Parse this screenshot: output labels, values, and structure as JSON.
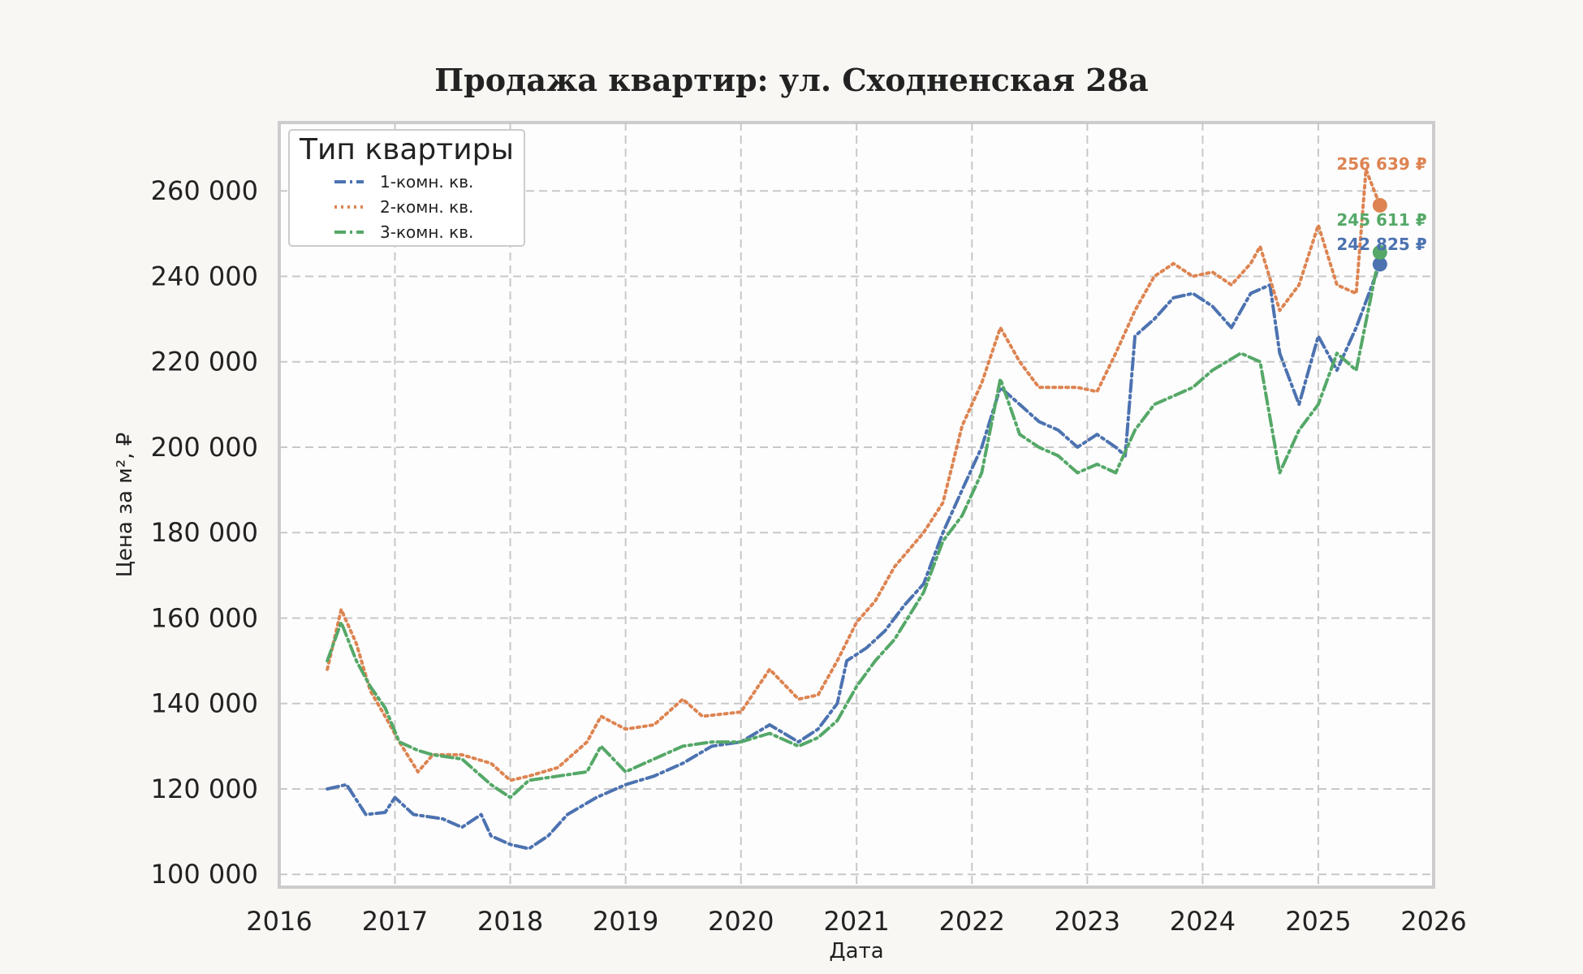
{
  "chart_data": {
    "type": "line",
    "title": "Продажа квартир: ул. Сходненская 28а",
    "xlabel": "Дата",
    "ylabel": "Цена за м², ₽",
    "xlim": [
      "2016-01-01",
      "2026-01-01"
    ],
    "ylim": [
      97000,
      276000
    ],
    "x_ticks": [
      "2016",
      "2017",
      "2018",
      "2019",
      "2020",
      "2021",
      "2022",
      "2023",
      "2024",
      "2025",
      "2026"
    ],
    "y_ticks": [
      "100 000",
      "120 000",
      "140 000",
      "160 000",
      "180 000",
      "200 000",
      "220 000",
      "240 000",
      "260 000"
    ],
    "y_tick_values": [
      100000,
      120000,
      140000,
      160000,
      180000,
      200000,
      220000,
      240000,
      260000
    ],
    "grid": true,
    "legend": {
      "title": "Тип квартиры",
      "position": "top-left"
    },
    "series": [
      {
        "name": "1-комн. кв.",
        "color": "#4c72b0",
        "style": "dashdot",
        "last_value": 242825,
        "last_label": "242 825 ₽",
        "points": [
          [
            "2016-06-01",
            120000
          ],
          [
            "2016-08-01",
            121000
          ],
          [
            "2016-10-01",
            114000
          ],
          [
            "2016-12-01",
            114500
          ],
          [
            "2017-01-01",
            118000
          ],
          [
            "2017-03-01",
            114000
          ],
          [
            "2017-06-01",
            113000
          ],
          [
            "2017-08-01",
            111000
          ],
          [
            "2017-10-01",
            114000
          ],
          [
            "2017-11-01",
            109000
          ],
          [
            "2018-01-01",
            107000
          ],
          [
            "2018-03-01",
            106000
          ],
          [
            "2018-05-01",
            109000
          ],
          [
            "2018-07-01",
            114000
          ],
          [
            "2018-10-01",
            118000
          ],
          [
            "2019-01-01",
            121000
          ],
          [
            "2019-04-01",
            123000
          ],
          [
            "2019-07-01",
            126000
          ],
          [
            "2019-10-01",
            130000
          ],
          [
            "2020-01-01",
            131000
          ],
          [
            "2020-04-01",
            135000
          ],
          [
            "2020-07-01",
            131000
          ],
          [
            "2020-09-01",
            134000
          ],
          [
            "2020-11-01",
            140000
          ],
          [
            "2020-12-01",
            150000
          ],
          [
            "2021-02-01",
            153000
          ],
          [
            "2021-04-01",
            157000
          ],
          [
            "2021-06-01",
            163000
          ],
          [
            "2021-08-01",
            168000
          ],
          [
            "2021-10-01",
            180000
          ],
          [
            "2021-12-01",
            190000
          ],
          [
            "2022-02-01",
            200000
          ],
          [
            "2022-04-01",
            214000
          ],
          [
            "2022-06-01",
            210000
          ],
          [
            "2022-08-01",
            206000
          ],
          [
            "2022-10-01",
            204000
          ],
          [
            "2022-12-01",
            200000
          ],
          [
            "2023-02-01",
            203000
          ],
          [
            "2023-04-01",
            200000
          ],
          [
            "2023-05-01",
            198000
          ],
          [
            "2023-06-01",
            226000
          ],
          [
            "2023-08-01",
            230000
          ],
          [
            "2023-10-01",
            235000
          ],
          [
            "2023-12-01",
            236000
          ],
          [
            "2024-02-01",
            233000
          ],
          [
            "2024-04-01",
            228000
          ],
          [
            "2024-06-01",
            236000
          ],
          [
            "2024-08-01",
            238000
          ],
          [
            "2024-09-01",
            222000
          ],
          [
            "2024-11-01",
            210000
          ],
          [
            "2025-01-01",
            226000
          ],
          [
            "2025-03-01",
            218000
          ],
          [
            "2025-05-01",
            228000
          ],
          [
            "2025-07-15",
            242825
          ]
        ]
      },
      {
        "name": "2-комн. кв.",
        "color": "#dd8452",
        "style": "dotted",
        "last_value": 256639,
        "last_label": "256 639 ₽",
        "points": [
          [
            "2016-06-01",
            148000
          ],
          [
            "2016-07-15",
            162000
          ],
          [
            "2016-09-01",
            154000
          ],
          [
            "2016-10-15",
            143000
          ],
          [
            "2016-12-01",
            137000
          ],
          [
            "2017-01-15",
            131000
          ],
          [
            "2017-03-15",
            124000
          ],
          [
            "2017-05-01",
            128000
          ],
          [
            "2017-08-01",
            128000
          ],
          [
            "2017-11-01",
            126000
          ],
          [
            "2018-01-01",
            122000
          ],
          [
            "2018-03-01",
            123000
          ],
          [
            "2018-06-01",
            125000
          ],
          [
            "2018-09-01",
            131000
          ],
          [
            "2018-10-15",
            137000
          ],
          [
            "2019-01-01",
            134000
          ],
          [
            "2019-04-01",
            135000
          ],
          [
            "2019-07-01",
            141000
          ],
          [
            "2019-09-01",
            137000
          ],
          [
            "2020-01-01",
            138000
          ],
          [
            "2020-04-01",
            148000
          ],
          [
            "2020-07-01",
            141000
          ],
          [
            "2020-09-01",
            142000
          ],
          [
            "2020-11-01",
            150000
          ],
          [
            "2021-01-01",
            159000
          ],
          [
            "2021-03-01",
            164000
          ],
          [
            "2021-05-01",
            172000
          ],
          [
            "2021-08-01",
            180000
          ],
          [
            "2021-10-01",
            187000
          ],
          [
            "2021-12-01",
            205000
          ],
          [
            "2022-02-01",
            215000
          ],
          [
            "2022-04-01",
            228000
          ],
          [
            "2022-06-01",
            220000
          ],
          [
            "2022-08-01",
            214000
          ],
          [
            "2022-12-01",
            214000
          ],
          [
            "2023-02-01",
            213000
          ],
          [
            "2023-04-01",
            222000
          ],
          [
            "2023-06-01",
            232000
          ],
          [
            "2023-08-01",
            240000
          ],
          [
            "2023-10-01",
            243000
          ],
          [
            "2023-12-01",
            240000
          ],
          [
            "2024-02-01",
            241000
          ],
          [
            "2024-04-01",
            238000
          ],
          [
            "2024-06-01",
            243000
          ],
          [
            "2024-07-01",
            247000
          ],
          [
            "2024-09-01",
            232000
          ],
          [
            "2024-11-01",
            238000
          ],
          [
            "2025-01-01",
            252000
          ],
          [
            "2025-03-01",
            238000
          ],
          [
            "2025-05-01",
            236000
          ],
          [
            "2025-06-01",
            265000
          ],
          [
            "2025-07-15",
            256639
          ]
        ]
      },
      {
        "name": "3-комн. кв.",
        "color": "#55a868",
        "style": "dashdot",
        "last_value": 245611,
        "last_label": "245 611 ₽",
        "points": [
          [
            "2016-06-01",
            150000
          ],
          [
            "2016-07-15",
            159000
          ],
          [
            "2016-09-01",
            150000
          ],
          [
            "2016-10-15",
            144000
          ],
          [
            "2016-12-01",
            139000
          ],
          [
            "2017-01-15",
            131000
          ],
          [
            "2017-03-15",
            129000
          ],
          [
            "2017-05-01",
            128000
          ],
          [
            "2017-08-01",
            127000
          ],
          [
            "2017-11-01",
            121000
          ],
          [
            "2018-01-01",
            118000
          ],
          [
            "2018-03-01",
            122000
          ],
          [
            "2018-06-01",
            123000
          ],
          [
            "2018-09-01",
            124000
          ],
          [
            "2018-10-15",
            130000
          ],
          [
            "2019-01-01",
            124000
          ],
          [
            "2019-04-01",
            127000
          ],
          [
            "2019-07-01",
            130000
          ],
          [
            "2019-10-01",
            131000
          ],
          [
            "2020-01-01",
            131000
          ],
          [
            "2020-04-01",
            133000
          ],
          [
            "2020-07-01",
            130000
          ],
          [
            "2020-09-01",
            132000
          ],
          [
            "2020-11-01",
            136000
          ],
          [
            "2021-01-01",
            144000
          ],
          [
            "2021-03-01",
            150000
          ],
          [
            "2021-05-01",
            155000
          ],
          [
            "2021-08-01",
            166000
          ],
          [
            "2021-10-01",
            178000
          ],
          [
            "2021-12-01",
            184000
          ],
          [
            "2022-02-01",
            194000
          ],
          [
            "2022-04-01",
            216000
          ],
          [
            "2022-06-01",
            203000
          ],
          [
            "2022-08-01",
            200000
          ],
          [
            "2022-10-01",
            198000
          ],
          [
            "2022-12-01",
            194000
          ],
          [
            "2023-02-01",
            196000
          ],
          [
            "2023-04-01",
            194000
          ],
          [
            "2023-06-01",
            204000
          ],
          [
            "2023-08-01",
            210000
          ],
          [
            "2023-10-01",
            212000
          ],
          [
            "2023-12-01",
            214000
          ],
          [
            "2024-02-01",
            218000
          ],
          [
            "2024-05-01",
            222000
          ],
          [
            "2024-07-01",
            220000
          ],
          [
            "2024-09-01",
            194000
          ],
          [
            "2024-11-01",
            204000
          ],
          [
            "2025-01-01",
            210000
          ],
          [
            "2025-03-01",
            222000
          ],
          [
            "2025-05-01",
            218000
          ],
          [
            "2025-07-15",
            245611
          ]
        ]
      }
    ]
  }
}
